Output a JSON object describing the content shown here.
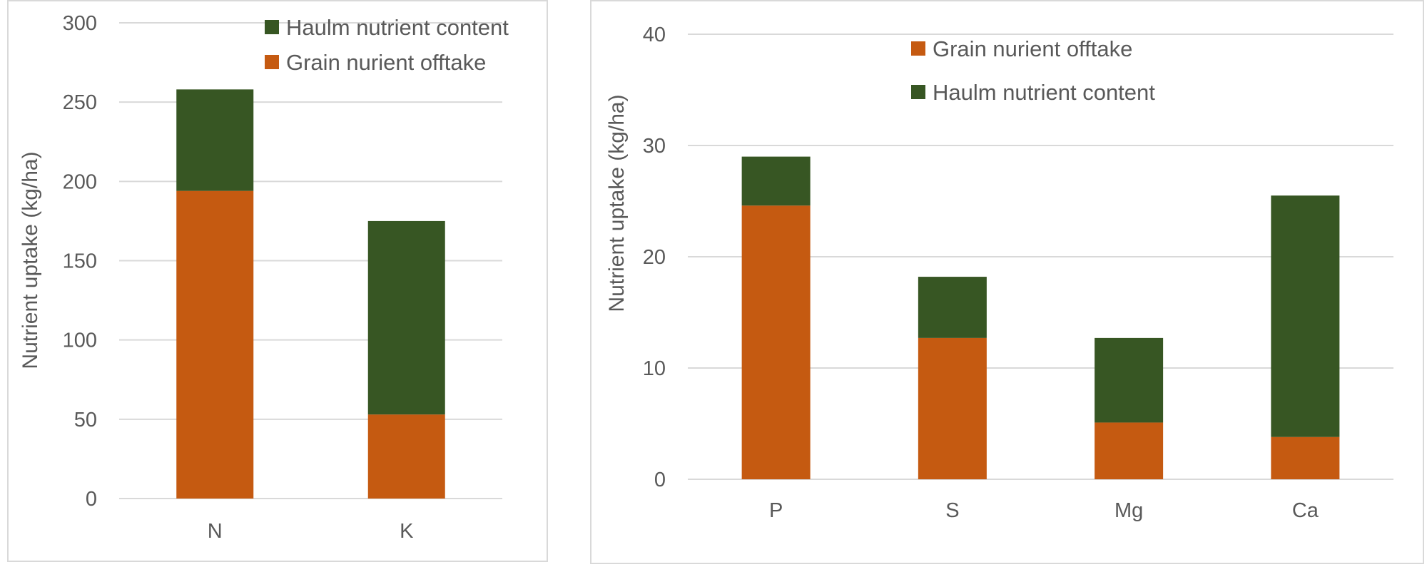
{
  "colors": {
    "grain": "#c55a11",
    "haulm": "#375623",
    "grid": "#d9d9d9",
    "text": "#595959"
  },
  "chart_data": [
    {
      "type": "bar",
      "stacked": true,
      "categories": [
        "N",
        "K"
      ],
      "series": [
        {
          "name": "Grain nurient offtake",
          "values": [
            194,
            53
          ],
          "color": "#c55a11"
        },
        {
          "name": "Haulm nutrient content",
          "values": [
            64,
            122
          ],
          "color": "#375623"
        }
      ],
      "yticks": [
        "0",
        "50",
        "100",
        "150",
        "200",
        "250",
        "300"
      ],
      "ylim": [
        0,
        300
      ],
      "ylabel": "Nutrient uptake (kg/ha)",
      "xlabel": "",
      "grid": true,
      "legend_position": "top-right",
      "legend_order": [
        1,
        0
      ]
    },
    {
      "type": "bar",
      "stacked": true,
      "categories": [
        "P",
        "S",
        "Mg",
        "Ca"
      ],
      "series": [
        {
          "name": "Grain nurient offtake",
          "values": [
            24.6,
            12.7,
            5.1,
            3.8
          ],
          "color": "#c55a11"
        },
        {
          "name": "Haulm nutrient content",
          "values": [
            4.4,
            5.5,
            7.6,
            21.7
          ],
          "color": "#375623"
        }
      ],
      "yticks": [
        "0",
        "10",
        "20",
        "30",
        "40"
      ],
      "ylim": [
        0,
        40
      ],
      "ylabel": "Nutrient uptake (kg/ha)",
      "xlabel": "",
      "grid": true,
      "legend_position": "top-center",
      "legend_order": [
        0,
        1
      ]
    }
  ]
}
